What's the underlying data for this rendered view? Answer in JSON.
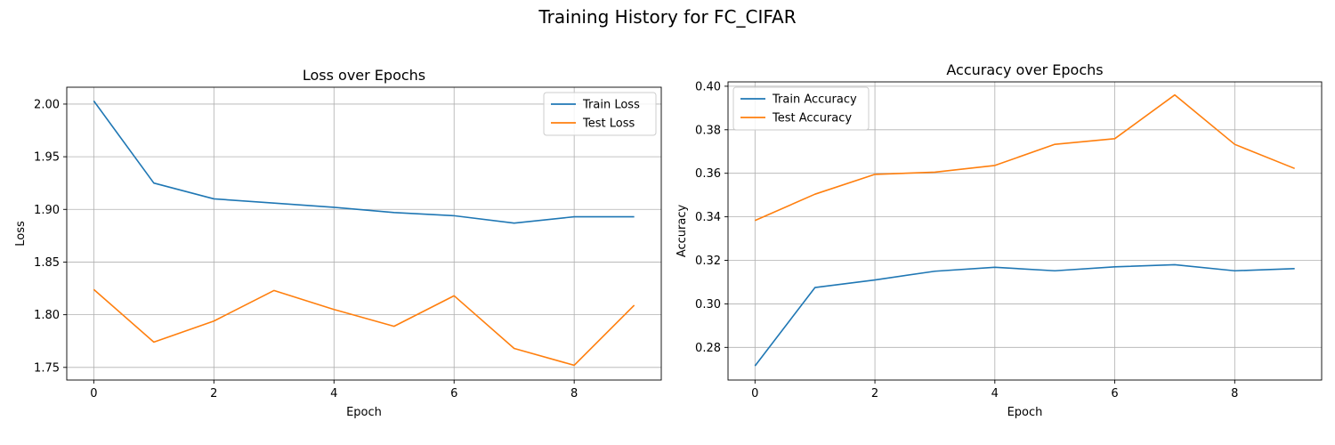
{
  "figure": {
    "title": "Training History for FC_CIFAR"
  },
  "chart_data": [
    {
      "type": "line",
      "title": "Loss over Epochs",
      "xlabel": "Epoch",
      "ylabel": "Loss",
      "x": [
        0,
        1,
        2,
        3,
        4,
        5,
        6,
        7,
        8,
        9
      ],
      "xlim": [
        -0.45,
        9.45
      ],
      "ylim": [
        1.738,
        2.016
      ],
      "xticks": [
        0,
        2,
        4,
        6,
        8
      ],
      "yticks": [
        1.75,
        1.8,
        1.85,
        1.9,
        1.95,
        2.0
      ],
      "grid": true,
      "legend_position": "top-right",
      "series": [
        {
          "name": "Train Loss",
          "color": "#1f77b4",
          "values": [
            2.003,
            1.925,
            1.91,
            1.906,
            1.902,
            1.897,
            1.894,
            1.887,
            1.893,
            1.893
          ]
        },
        {
          "name": "Test Loss",
          "color": "#ff7f0e",
          "values": [
            1.824,
            1.774,
            1.794,
            1.823,
            1.805,
            1.789,
            1.818,
            1.768,
            1.752,
            1.809
          ]
        }
      ]
    },
    {
      "type": "line",
      "title": "Accuracy over Epochs",
      "xlabel": "Epoch",
      "ylabel": "Accuracy",
      "x": [
        0,
        1,
        2,
        3,
        4,
        5,
        6,
        7,
        8,
        9
      ],
      "xlim": [
        -0.45,
        9.45
      ],
      "ylim": [
        0.265,
        0.402
      ],
      "xticks": [
        0,
        2,
        4,
        6,
        8
      ],
      "yticks": [
        0.28,
        0.3,
        0.32,
        0.34,
        0.36,
        0.38,
        0.4
      ],
      "grid": true,
      "legend_position": "top-left",
      "series": [
        {
          "name": "Train Accuracy",
          "color": "#1f77b4",
          "values": [
            0.2715,
            0.3075,
            0.311,
            0.315,
            0.3168,
            0.3152,
            0.317,
            0.318,
            0.3152,
            0.3162
          ]
        },
        {
          "name": "Test Accuracy",
          "color": "#ff7f0e",
          "values": [
            0.3383,
            0.3504,
            0.3595,
            0.3605,
            0.3636,
            0.3733,
            0.3759,
            0.396,
            0.3733,
            0.3622
          ]
        }
      ]
    }
  ]
}
